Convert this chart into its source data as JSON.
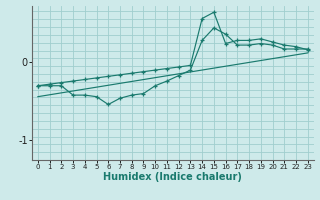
{
  "xlabel": "Humidex (Indice chaleur)",
  "background_color": "#ceeaea",
  "line_color": "#1a7a6e",
  "x_ticks": [
    0,
    1,
    2,
    3,
    4,
    5,
    6,
    7,
    8,
    9,
    10,
    11,
    12,
    13,
    14,
    15,
    16,
    17,
    18,
    19,
    20,
    21,
    22,
    23
  ],
  "xlim": [
    -0.5,
    23.5
  ],
  "ylim": [
    -1.25,
    0.72
  ],
  "yticks": [
    0,
    -1
  ],
  "grid_color": "#a0cece",
  "series1_x": [
    0,
    1,
    2,
    3,
    4,
    5,
    6,
    7,
    8,
    9,
    10,
    11,
    12,
    13,
    14,
    15,
    16,
    17,
    18,
    19,
    20,
    21,
    22,
    23
  ],
  "series1_y": [
    -0.3,
    -0.3,
    -0.3,
    -0.42,
    -0.42,
    -0.44,
    -0.54,
    -0.46,
    -0.42,
    -0.4,
    -0.3,
    -0.24,
    -0.17,
    -0.1,
    0.28,
    0.44,
    0.36,
    0.22,
    0.22,
    0.24,
    0.22,
    0.17,
    0.17,
    0.17
  ],
  "series2_x": [
    0,
    1,
    2,
    3,
    4,
    5,
    6,
    7,
    8,
    9,
    10,
    11,
    12,
    13,
    14,
    15,
    16,
    17,
    18,
    19,
    20,
    21,
    22,
    23
  ],
  "series2_y": [
    -0.3,
    -0.28,
    -0.26,
    -0.24,
    -0.22,
    -0.2,
    -0.18,
    -0.16,
    -0.14,
    -0.12,
    -0.1,
    -0.08,
    -0.06,
    -0.04,
    0.56,
    0.64,
    0.24,
    0.28,
    0.28,
    0.3,
    0.26,
    0.22,
    0.2,
    0.16
  ],
  "series3_x": [
    0,
    23
  ],
  "series3_y": [
    -0.44,
    0.12
  ]
}
